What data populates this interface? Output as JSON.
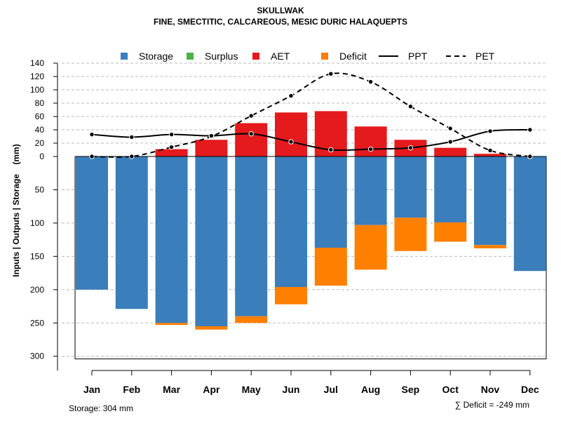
{
  "title": {
    "line1": "SKULLWAK",
    "line2": "FINE, SMECTITIC, CALCAREOUS, MESIC DURIC HALAQUEPTS"
  },
  "footer": {
    "storage": "Storage: 304 mm",
    "deficit": "∑ Deficit = -249 mm"
  },
  "colors": {
    "storage": "#3a7ebb",
    "surplus": "#4daf4a",
    "aet": "#e41a1c",
    "deficit": "#ff7f00"
  },
  "chart_data": {
    "type": "bar",
    "ylabel": "Inputs | Outputs | Storage    (mm)",
    "categories": [
      "Jan",
      "Feb",
      "Mar",
      "Apr",
      "May",
      "Jun",
      "Jul",
      "Aug",
      "Sep",
      "Oct",
      "Nov",
      "Dec"
    ],
    "y_upper_ticks": [
      0,
      20,
      40,
      60,
      80,
      100,
      120,
      140
    ],
    "y_upper_tick_labels": [
      "0",
      "20",
      "40",
      "60",
      "80",
      "100",
      "120",
      "140"
    ],
    "y_lower_ticks": [
      50,
      100,
      150,
      200,
      250,
      300
    ],
    "y_lower_tick_labels": [
      "50",
      "100",
      "150",
      "200",
      "250",
      "300"
    ],
    "ylim_upper": [
      0,
      140
    ],
    "ylim_lower": [
      0,
      304
    ],
    "grid": true,
    "legend": [
      {
        "key": "storage",
        "label": "Storage",
        "kind": "box"
      },
      {
        "key": "surplus",
        "label": "Surplus",
        "kind": "box"
      },
      {
        "key": "aet",
        "label": "AET",
        "kind": "box"
      },
      {
        "key": "deficit",
        "label": "Deficit",
        "kind": "box"
      },
      {
        "key": "ppt",
        "label": "PPT",
        "kind": "solid"
      },
      {
        "key": "pet",
        "label": "PET",
        "kind": "dashed"
      }
    ],
    "series": [
      {
        "name": "Storage",
        "values": [
          200,
          229,
          250,
          255,
          240,
          196,
          137,
          103,
          92,
          99,
          133,
          172
        ]
      },
      {
        "name": "Deficit",
        "values": [
          0,
          0,
          3,
          5,
          10,
          26,
          57,
          67,
          50,
          29,
          5,
          0
        ]
      },
      {
        "name": "AET",
        "values": [
          0,
          0,
          11,
          25,
          50,
          66,
          68,
          45,
          25,
          13,
          4,
          0
        ]
      },
      {
        "name": "Surplus",
        "values": [
          0,
          0,
          0,
          0,
          0,
          0,
          0,
          0,
          0,
          0,
          0,
          0
        ]
      },
      {
        "name": "PPT",
        "values": [
          33,
          29,
          33,
          31,
          34,
          22,
          10,
          11,
          13,
          22,
          38,
          40
        ]
      },
      {
        "name": "PET",
        "values": [
          0,
          0,
          14,
          30,
          61,
          91,
          124,
          112,
          75,
          42,
          9,
          0
        ]
      }
    ]
  }
}
